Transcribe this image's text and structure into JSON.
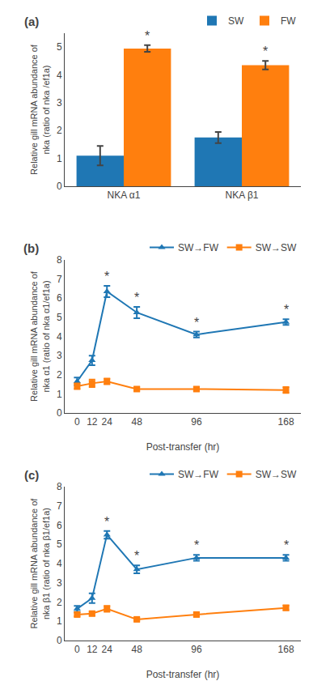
{
  "chart_data": [
    {
      "type": "bar",
      "title": "(a)",
      "categories": [
        "NKA α1",
        "NKA β1"
      ],
      "series": [
        {
          "name": "SW",
          "values": [
            1.1,
            1.75
          ],
          "errors": [
            0.35,
            0.2
          ]
        },
        {
          "name": "FW",
          "values": [
            4.95,
            4.35
          ],
          "errors": [
            0.12,
            0.15
          ]
        }
      ],
      "y_label": "Relative gill mRNA abundance of\nnka (ratio of nka /ef1a)",
      "ylim": [
        0,
        5.5
      ],
      "yticks": [
        0,
        1,
        2,
        3,
        4,
        5
      ],
      "grid": false,
      "legend": "upper right",
      "annotations": [
        {
          "text": "*",
          "series": "FW",
          "x": "NKA α1"
        },
        {
          "text": "*",
          "series": "FW",
          "x": "NKA β1"
        }
      ]
    },
    {
      "type": "line",
      "title": "(b)",
      "x": [
        0,
        12,
        24,
        48,
        96,
        168
      ],
      "series": [
        {
          "name": "SW→FW",
          "marker": "triangle-up",
          "values": [
            1.65,
            2.75,
            6.35,
            5.25,
            4.1,
            4.75
          ],
          "errors": [
            0.2,
            0.25,
            0.3,
            0.3,
            0.15,
            0.15
          ]
        },
        {
          "name": "SW→SW",
          "marker": "square",
          "values": [
            1.4,
            1.55,
            1.65,
            1.25,
            1.25,
            1.2
          ],
          "errors": [
            0.15,
            0.2,
            0.15,
            0.1,
            0.1,
            0.15
          ]
        }
      ],
      "x_label": "Post-transfer (hr)",
      "y_label": "Relative gill mRNA abundance of\nnka α1 (ratio of nka α1/ef1a)",
      "xlim": [
        -10,
        180
      ],
      "xticks": [
        0,
        12,
        24,
        48,
        96,
        168
      ],
      "ylim": [
        0,
        8
      ],
      "yticks": [
        0,
        1,
        2,
        3,
        4,
        5,
        6,
        7,
        8
      ],
      "grid": false,
      "legend": "upper right",
      "annotations": [
        {
          "text": "*",
          "series": "SW→FW",
          "x": 24
        },
        {
          "text": "*",
          "series": "SW→FW",
          "x": 48
        },
        {
          "text": "*",
          "series": "SW→FW",
          "x": 96
        },
        {
          "text": "*",
          "series": "SW→FW",
          "x": 168
        }
      ]
    },
    {
      "type": "line",
      "title": "(c)",
      "x": [
        0,
        12,
        24,
        48,
        96,
        168
      ],
      "series": [
        {
          "name": "SW→FW",
          "marker": "triangle-up",
          "values": [
            1.65,
            2.2,
            5.5,
            3.7,
            4.3,
            4.3
          ],
          "errors": [
            0.15,
            0.25,
            0.2,
            0.2,
            0.15,
            0.15
          ]
        },
        {
          "name": "SW→SW",
          "marker": "square",
          "values": [
            1.35,
            1.4,
            1.65,
            1.1,
            1.35,
            1.7
          ],
          "errors": [
            0.1,
            0.1,
            0.15,
            0.08,
            0.1,
            0.12
          ]
        }
      ],
      "x_label": "Post-transfer (hr)",
      "y_label": "Relative gill mRNA abundance of\nnka β1 (ratio of nka β1/ef1a)",
      "xlim": [
        -10,
        180
      ],
      "xticks": [
        0,
        12,
        24,
        48,
        96,
        168
      ],
      "ylim": [
        0,
        8
      ],
      "yticks": [
        0,
        1,
        2,
        3,
        4,
        5,
        6,
        7,
        8
      ],
      "grid": false,
      "legend": "upper right",
      "annotations": [
        {
          "text": "*",
          "series": "SW→FW",
          "x": 24
        },
        {
          "text": "*",
          "series": "SW→FW",
          "x": 48
        },
        {
          "text": "*",
          "series": "SW→FW",
          "x": 96
        },
        {
          "text": "*",
          "series": "SW→FW",
          "x": 168
        }
      ]
    }
  ]
}
